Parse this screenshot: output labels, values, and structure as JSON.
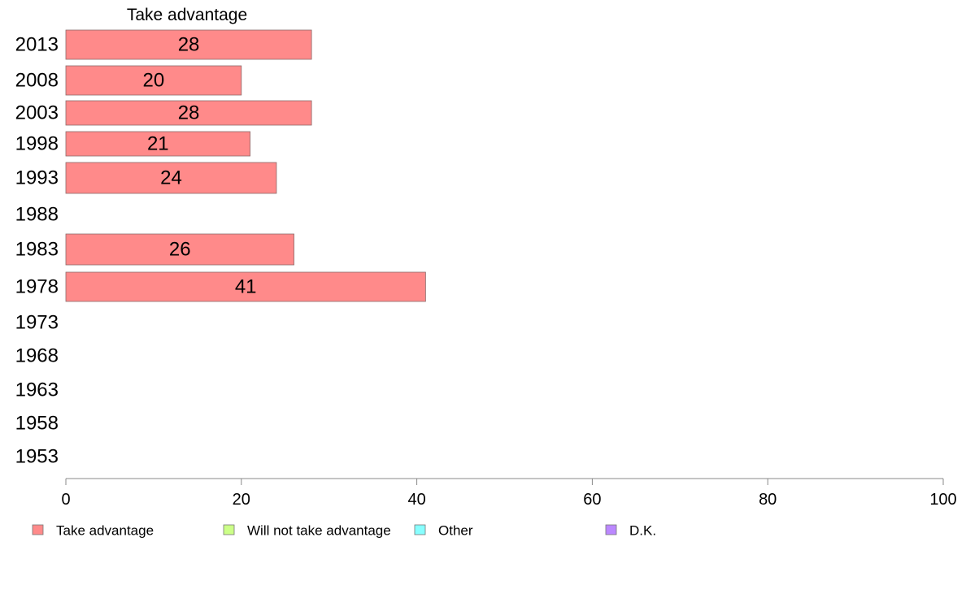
{
  "chart_data": {
    "type": "bar",
    "orientation": "horizontal",
    "title": "Take advantage",
    "categories": [
      "2013",
      "2008",
      "2003",
      "1998",
      "1993",
      "1988",
      "1983",
      "1978",
      "1973",
      "1968",
      "1963",
      "1958",
      "1953"
    ],
    "series": [
      {
        "name": "Take advantage",
        "color": "#ff8a8a",
        "values": [
          28,
          20,
          28,
          21,
          24,
          null,
          26,
          41,
          null,
          null,
          null,
          null,
          null
        ]
      }
    ],
    "data_labels": [
      "28",
      "20",
      "28",
      "21",
      "24",
      "",
      "26",
      "41",
      "",
      "",
      "",
      "",
      ""
    ],
    "xlim": [
      0,
      100
    ],
    "xticks": [
      0,
      20,
      40,
      60,
      80,
      100
    ],
    "grid": false,
    "legend": {
      "placement": "bottom",
      "entries": [
        {
          "label": "Take advantage",
          "color": "#ff8a8a"
        },
        {
          "label": "Will not take advantage",
          "color": "#ccff88"
        },
        {
          "label": "Other",
          "color": "#88ffff"
        },
        {
          "label": "D.K.",
          "color": "#bb88ff"
        }
      ]
    }
  }
}
